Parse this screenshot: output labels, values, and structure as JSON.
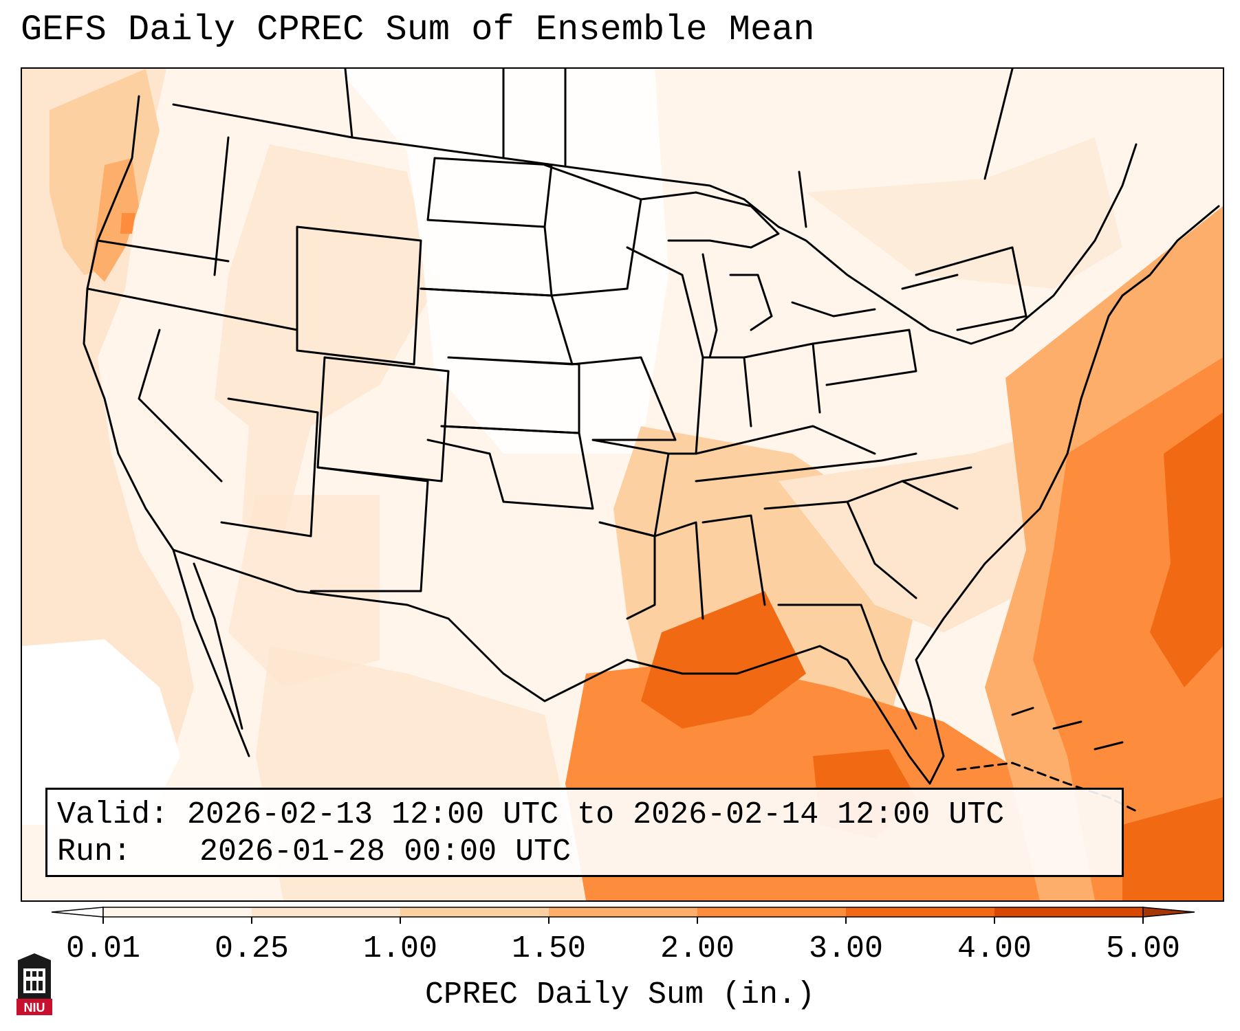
{
  "title": "GEFS Daily CPREC Sum of Ensemble Mean",
  "info": {
    "valid_label": "Valid:",
    "valid_value": "2026-02-13 12:00 UTC to 2026-02-14 12:00 UTC",
    "run_label": "Run:",
    "run_value": "2026-01-28 00:00 UTC"
  },
  "colorbar": {
    "label": "CPREC Daily Sum (in.)",
    "ticks": [
      "0.01",
      "0.25",
      "1.00",
      "1.50",
      "2.00",
      "3.00",
      "4.00",
      "5.00"
    ],
    "colors": [
      "#fff5eb",
      "#fee6ce",
      "#fdd0a2",
      "#fdae6b",
      "#fd8d3c",
      "#f16913",
      "#d94801"
    ],
    "under_color": "#ffffff",
    "over_color": "#a63603"
  },
  "logo": {
    "text": "NIU",
    "color": "#c8102e"
  },
  "regions": [
    {
      "name": "pacific-northwest-coast-precip",
      "level": 3
    },
    {
      "name": "gulf-coast-precip",
      "level": 5
    },
    {
      "name": "atlantic-offshore-precip",
      "level": 6
    },
    {
      "name": "mississippi-valley-precip",
      "level": 4
    }
  ]
}
